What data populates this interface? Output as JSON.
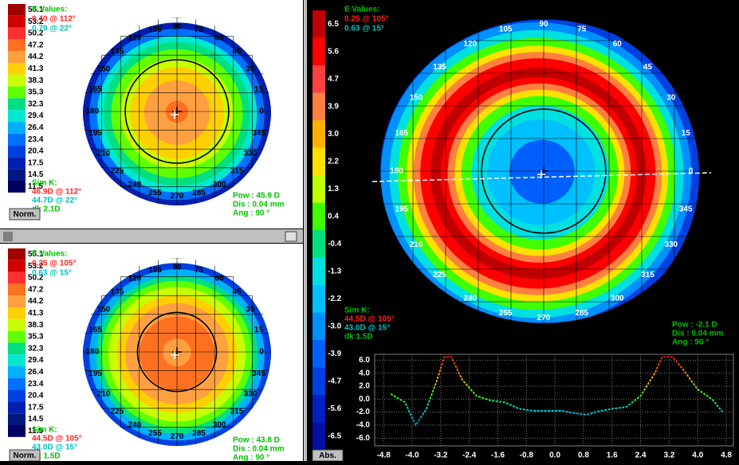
{
  "panels": [
    {
      "scale": {
        "labels": [
          "56.1",
          "53.2",
          "50.2",
          "47.2",
          "44.2",
          "41.3",
          "38.3",
          "35.3",
          "32.3",
          "29.4",
          "26.4",
          "23.4",
          "20.4",
          "17.5",
          "14.5",
          "11.5"
        ],
        "colors": [
          "#a00000",
          "#d00000",
          "#ff3030",
          "#ff7020",
          "#ffa040",
          "#ffd000",
          "#c8ff00",
          "#60ff00",
          "#00e080",
          "#00e8d0",
          "#00b0ff",
          "#0070ff",
          "#0040e0",
          "#0020b0",
          "#001880",
          "#000060"
        ]
      },
      "e_values": {
        "title": "E Values:",
        "lines": [
          "0.40 @ 112°",
          "0.79 @ 22°"
        ]
      },
      "sim_k": {
        "title": "Sim K:",
        "lines": [
          "46.9D @ 112°",
          "44.7D @ 22°",
          "dk 2.1D"
        ]
      },
      "readout": [
        "Pow : 45.9 D",
        "Dis : 0.04 mm",
        "Ang : 90 °"
      ],
      "button": "Norm."
    },
    {
      "scale": {
        "labels": [
          "56.1",
          "53.2",
          "50.2",
          "47.2",
          "44.2",
          "41.3",
          "38.3",
          "35.3",
          "32.3",
          "29.4",
          "26.4",
          "23.4",
          "20.4",
          "17.5",
          "14.5",
          "11.5"
        ],
        "colors": [
          "#a00000",
          "#d00000",
          "#ff3030",
          "#ff7020",
          "#ffa040",
          "#ffd000",
          "#c8ff00",
          "#60ff00",
          "#00e080",
          "#00e8d0",
          "#00b0ff",
          "#0070ff",
          "#0040e0",
          "#0020b0",
          "#001880",
          "#000060"
        ]
      },
      "e_values": {
        "title": "E Values:",
        "lines": [
          "0.25 @ 105°",
          "0.63 @ 15°"
        ]
      },
      "sim_k": {
        "title": "Sim K:",
        "lines": [
          "44.5D @ 105°",
          "43.0D @ 15°",
          "dk 1.5D"
        ]
      },
      "readout": [
        "Pow : 43.8 D",
        "Dis : 0.04 mm",
        "Ang : 90 °"
      ],
      "button": "Norm."
    },
    {
      "scale": {
        "labels": [
          "6.5",
          "5.6",
          "4.7",
          "3.9",
          "3.0",
          "2.2",
          "1.3",
          "0.4",
          "-0.4",
          "-1.3",
          "-2.2",
          "-3.0",
          "-3.9",
          "-4.7",
          "-5.6",
          "-6.5"
        ],
        "colors": [
          "#c00000",
          "#ff0000",
          "#ff4040",
          "#ff8040",
          "#ffb000",
          "#ffe000",
          "#c0ff00",
          "#40ff00",
          "#00e080",
          "#00e0e0",
          "#00c0ff",
          "#0090ff",
          "#0060ff",
          "#0040e0",
          "#0020c0",
          "#0010a0"
        ]
      },
      "e_values": {
        "title": "E Values:",
        "lines": [
          "0.25 @ 105°",
          "0.63 @ 15°"
        ]
      },
      "sim_k": {
        "title": "Sim K:",
        "lines": [
          "44.5D @ 105°",
          "43.0D @ 15°",
          "dk 1.5D"
        ]
      },
      "readout": [
        "Pow : -2.1 D",
        "Dis : 0.04 mm",
        "Ang : 90 °"
      ],
      "button": "Abs."
    }
  ],
  "angles": [
    90,
    75,
    60,
    45,
    30,
    15,
    0,
    345,
    330,
    315,
    300,
    285,
    270,
    255,
    240,
    225,
    210,
    195,
    180,
    165,
    150,
    135,
    120,
    105
  ],
  "profile": {
    "x": [
      -4.6,
      -4.2,
      -3.9,
      -3.6,
      -3.3,
      -3.1,
      -2.9,
      -2.6,
      -2.2,
      -1.8,
      -1.4,
      -1.0,
      -0.6,
      -0.2,
      0.2,
      0.6,
      0.9,
      1.2,
      1.6,
      2.0,
      2.4,
      2.8,
      3.0,
      3.3,
      3.6,
      4.0,
      4.4,
      4.7
    ],
    "values": [
      0.8,
      -0.5,
      -4.0,
      -1.5,
      3.0,
      6.5,
      6.5,
      3.0,
      0.5,
      -0.2,
      -0.5,
      -1.5,
      -1.8,
      -1.8,
      -1.8,
      -2.2,
      -2.4,
      -1.9,
      -1.5,
      -1.2,
      0.5,
      4.0,
      6.5,
      6.5,
      4.5,
      1.5,
      0.0,
      -2.0
    ],
    "xlim": [
      -5.05,
      5.0
    ],
    "ylim": [
      -7.2,
      6.9
    ],
    "xticks": [
      {
        "value": -4.8,
        "label": "-4.8"
      },
      {
        "value": -4.0,
        "label": "-4.0"
      },
      {
        "value": -3.2,
        "label": "-3.2"
      },
      {
        "value": -2.4,
        "label": "-2.4"
      },
      {
        "value": -1.6,
        "label": "-1.6"
      },
      {
        "value": -0.8,
        "label": "-0.8"
      },
      {
        "value": 0,
        "label": "0.0"
      },
      {
        "value": 0.8,
        "label": "0.8"
      },
      {
        "value": 1.6,
        "label": "1.6"
      },
      {
        "value": 2.4,
        "label": "2.4"
      },
      {
        "value": 3.2,
        "label": "3.2"
      },
      {
        "value": 4.0,
        "label": "4.0"
      },
      {
        "value": 4.8,
        "label": "4.8"
      }
    ],
    "yticks": [
      {
        "value": 6,
        "label": "6.0"
      },
      {
        "value": 4,
        "label": "4.0"
      },
      {
        "value": 2,
        "label": "2.0"
      },
      {
        "value": 0,
        "label": "0.0"
      },
      {
        "value": -2,
        "label": "-2.0"
      },
      {
        "value": -4,
        "label": "-4.0"
      },
      {
        "value": -6,
        "label": "-6.0"
      }
    ]
  }
}
